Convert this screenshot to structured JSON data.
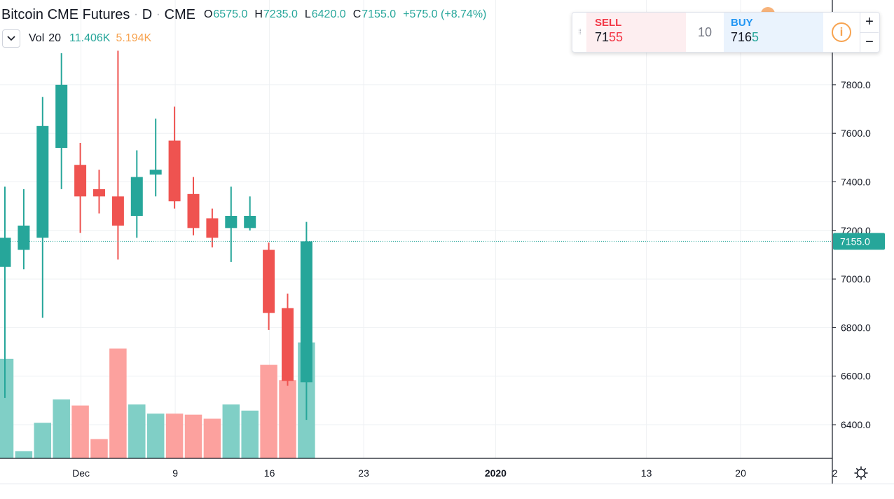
{
  "legend": {
    "symbol": "Bitcoin CME Futures",
    "separator": "·",
    "interval": "D",
    "exchange": "CME",
    "ohlc": [
      {
        "label": "O",
        "value": "6575.0"
      },
      {
        "label": "H",
        "value": "7235.0"
      },
      {
        "label": "L",
        "value": "6420.0"
      },
      {
        "label": "C",
        "value": "7155.0"
      }
    ],
    "change": "+575.0 (+8.74%)",
    "volume": {
      "collapse_icon": "chevron-down-icon",
      "label": "Vol",
      "length": "20",
      "value": "11.406K",
      "ma_value": "5.194K"
    }
  },
  "trade": {
    "sell_label": "SELL",
    "sell_price_prefix": "71",
    "sell_price_highlight": "55",
    "quantity": "10",
    "buy_label": "BUY",
    "buy_price_prefix": "716",
    "buy_price_highlight": "5",
    "info_symbol": "i",
    "plus": "+",
    "minus": "−"
  },
  "chart_data": {
    "type": "candlestick",
    "colors": {
      "up": "#26a69a",
      "down": "#ef5350",
      "volume_up": "#80cfc6",
      "volume_down": "#fca19e",
      "grid": "#eef0f3",
      "last_price": "#26a69a"
    },
    "ylim": [
      6280,
      7960
    ],
    "y_ticks": [
      "6400.0",
      "6600.0",
      "6800.0",
      "7000.0",
      "7200.0",
      "7400.0",
      "7600.0",
      "7800.0"
    ],
    "x_tick_labels": [
      {
        "label": "Dec",
        "bar": 4,
        "bold": false
      },
      {
        "label": "9",
        "bar": 9,
        "bold": false
      },
      {
        "label": "16",
        "bar": 14,
        "bold": false
      },
      {
        "label": "23",
        "bar": 19,
        "bold": false
      },
      {
        "label": "2020",
        "bar": 26,
        "bold": true
      },
      {
        "label": "13",
        "bar": 34,
        "bold": false
      },
      {
        "label": "20",
        "bar": 39,
        "bold": false
      },
      {
        "label": "2",
        "bar": 44,
        "bold": false
      }
    ],
    "volume_max": 20000,
    "last_price_label": "7155.0",
    "last_price": 7155,
    "candles": [
      {
        "o": 7050,
        "h": 7380,
        "l": 6510,
        "c": 7170,
        "v": 9800
      },
      {
        "o": 7120,
        "h": 7370,
        "l": 7040,
        "c": 7220,
        "v": 700
      },
      {
        "o": 7170,
        "h": 7750,
        "l": 6840,
        "c": 7630,
        "v": 3500
      },
      {
        "o": 7540,
        "h": 7930,
        "l": 7370,
        "c": 7800,
        "v": 5800
      },
      {
        "o": 7470,
        "h": 7560,
        "l": 7190,
        "c": 7340,
        "v": 5200
      },
      {
        "o": 7370,
        "h": 7450,
        "l": 7270,
        "c": 7340,
        "v": 1900
      },
      {
        "o": 7340,
        "h": 7940,
        "l": 7080,
        "c": 7220,
        "v": 10800
      },
      {
        "o": 7260,
        "h": 7530,
        "l": 7170,
        "c": 7420,
        "v": 5300
      },
      {
        "o": 7430,
        "h": 7660,
        "l": 7340,
        "c": 7450,
        "v": 4400
      },
      {
        "o": 7570,
        "h": 7710,
        "l": 7290,
        "c": 7320,
        "v": 4400
      },
      {
        "o": 7350,
        "h": 7420,
        "l": 7180,
        "c": 7210,
        "v": 4300
      },
      {
        "o": 7250,
        "h": 7290,
        "l": 7130,
        "c": 7170,
        "v": 3900
      },
      {
        "o": 7210,
        "h": 7380,
        "l": 7070,
        "c": 7260,
        "v": 5300
      },
      {
        "o": 7210,
        "h": 7340,
        "l": 7200,
        "c": 7260,
        "v": 4700
      },
      {
        "o": 7120,
        "h": 7150,
        "l": 6790,
        "c": 6860,
        "v": 9200
      },
      {
        "o": 6880,
        "h": 6940,
        "l": 6560,
        "c": 6580,
        "v": 7700
      },
      {
        "o": 6575,
        "h": 7235,
        "l": 6420,
        "c": 7155,
        "v": 11406
      }
    ]
  }
}
